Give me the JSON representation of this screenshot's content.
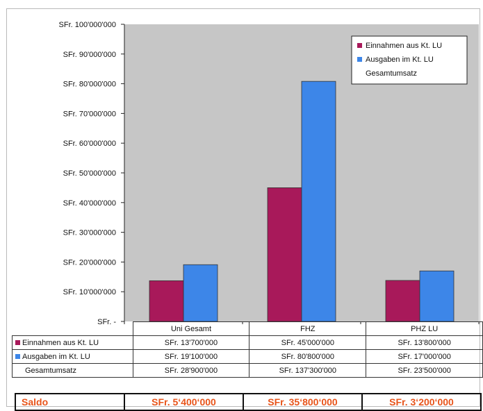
{
  "chart_data": {
    "type": "bar",
    "categories": [
      "Uni Gesamt",
      "FHZ",
      "PHZ LU"
    ],
    "series": [
      {
        "name": "Einnahmen aus Kt. LU",
        "values": [
          13700000,
          45000000,
          13800000
        ],
        "color": "#a8195a"
      },
      {
        "name": "Ausgaben im Kt. LU",
        "values": [
          19100000,
          80800000,
          17000000
        ],
        "color": "#3d86e8"
      }
    ],
    "legend_extra": "Gesamtumsatz",
    "ylim": [
      0,
      100000000
    ],
    "yticks": [
      {
        "value": 0,
        "label": "SFr. -"
      },
      {
        "value": 10000000,
        "label": "SFr. 10'000'000"
      },
      {
        "value": 20000000,
        "label": "SFr. 20'000'000"
      },
      {
        "value": 30000000,
        "label": "SFr. 30'000'000"
      },
      {
        "value": 40000000,
        "label": "SFr. 40'000'000"
      },
      {
        "value": 50000000,
        "label": "SFr. 50'000'000"
      },
      {
        "value": 60000000,
        "label": "SFr. 60'000'000"
      },
      {
        "value": 70000000,
        "label": "SFr. 70'000'000"
      },
      {
        "value": 80000000,
        "label": "SFr. 80'000'000"
      },
      {
        "value": 90000000,
        "label": "SFr. 90'000'000"
      },
      {
        "value": 100000000,
        "label": "SFr. 100'000'000"
      }
    ],
    "legend_placement": "top-right",
    "plot_background": "#c6c6c6",
    "grid": false
  },
  "table": {
    "categories": [
      "Uni Gesamt",
      "FHZ",
      "PHZ LU"
    ],
    "rows": [
      {
        "label": "Einnahmen aus Kt. LU",
        "color": "#a8195a",
        "cells": [
          "SFr. 13'700'000",
          "SFr. 45'000'000",
          "SFr. 13'800'000"
        ]
      },
      {
        "label": "Ausgaben im Kt. LU",
        "color": "#3d86e8",
        "cells": [
          "SFr. 19'100'000",
          "SFr. 80'800'000",
          "SFr. 17'000'000"
        ]
      },
      {
        "label": "Gesamtumsatz",
        "color": "",
        "cells": [
          "SFr. 28'900'000",
          "SFr. 137'300'000",
          "SFr. 23'500'000"
        ]
      }
    ]
  },
  "saldo": {
    "label": "Saldo",
    "values": [
      "SFr. 5‘400‘000",
      "SFr. 35‘800‘000",
      "SFr. 3‘200‘000"
    ]
  }
}
